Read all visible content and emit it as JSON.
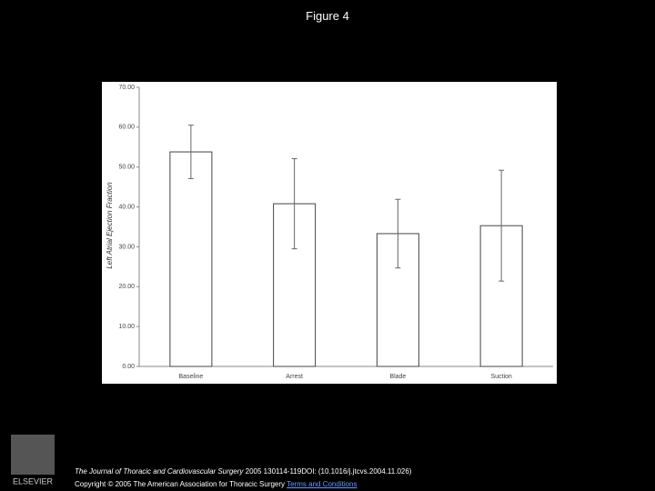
{
  "slide": {
    "title": "Figure 4",
    "journal": "The Journal of Thoracic and Cardiovascular Surgery",
    "citation": "2005 130114-119DOI: (10.1016/j.jtcvs.2004.11.026)",
    "copyright": "Copyright © 2005 The American Association for Thoracic Surgery",
    "link": "Terms and Conditions",
    "publisher": "ELSEVIER"
  },
  "chart_data": {
    "type": "bar",
    "y_label": "Left Atrial Ejection Fraction",
    "categories": [
      "Baseline",
      "Arrest",
      "Blade",
      "Suction"
    ],
    "values": [
      53.8,
      40.8,
      33.3,
      35.3
    ],
    "errors": [
      6.7,
      11.3,
      8.6,
      13.9
    ],
    "color": "#ffffff",
    "ylim": [
      0,
      70
    ],
    "yticks": [
      {
        "value": 0,
        "label": "0.00"
      },
      {
        "value": 10,
        "label": "10.00"
      },
      {
        "value": 20,
        "label": "20.00"
      },
      {
        "value": 30,
        "label": "30.00"
      },
      {
        "value": 40,
        "label": "40.00"
      },
      {
        "value": 50,
        "label": "50.00"
      },
      {
        "value": 60,
        "label": "60.00"
      },
      {
        "value": 70,
        "label": "70.00"
      }
    ],
    "grid": false
  }
}
